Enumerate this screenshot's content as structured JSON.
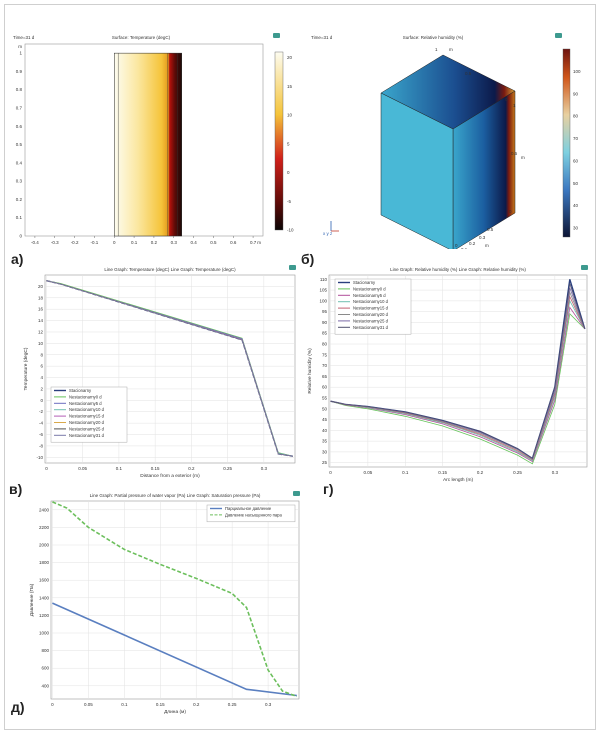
{
  "panel_labels": {
    "a": "а)",
    "b": "б)",
    "v": "в)",
    "g": "г)",
    "d": "д)"
  },
  "chart_data": [
    {
      "id": "a",
      "type": "heatmap",
      "time_label": "Time=31 d",
      "title": "Surface: Temperature (degC)",
      "x_ticks": [
        "-0.4",
        "-0.3",
        "-0.2",
        "-0.1",
        "0",
        "0.1",
        "0.2",
        "0.3",
        "0.4",
        "0.5",
        "0.6",
        "0.7"
      ],
      "x_unit": "m",
      "y_ticks": [
        "0",
        "0.1",
        "0.2",
        "0.3",
        "0.4",
        "0.5",
        "0.6",
        "0.7",
        "0.8",
        "0.9",
        "1"
      ],
      "y_unit": "m",
      "xlim": [
        -0.45,
        0.75
      ],
      "ylim": [
        0,
        1.05
      ],
      "region_x": [
        0,
        0.34
      ],
      "region_y": [
        0,
        1
      ],
      "colorbar": {
        "ticks": [
          "20",
          "15",
          "10",
          "5",
          "0",
          "-5",
          "-10"
        ],
        "min": -10,
        "max": 21
      },
      "icon": "comsol-logo-icon"
    },
    {
      "id": "b",
      "type": "heatmap",
      "time_label": "Time=31 d",
      "title": "Surface: Relative humidity (%)",
      "axis_labels": {
        "top_m": "m",
        "top_05": "0.5",
        "top_1": "1",
        "right_0": "0",
        "right_1": "1",
        "right_05": "0.5",
        "right_0b": "0",
        "right_m": "m",
        "bot_05": "0.5",
        "bot_03": "0.3",
        "bot_02": "0.2",
        "bot_01": "0.1",
        "bot_0": "0",
        "bot_m": "m",
        "axes": "x y z"
      },
      "colorbar": {
        "ticks": [
          "100",
          "90",
          "80",
          "70",
          "60",
          "50",
          "40",
          "30"
        ],
        "min": 26,
        "max": 110
      },
      "icon": "comsol-logo-icon"
    },
    {
      "id": "v",
      "type": "line",
      "title": "Line Graph: Temperature (degC)  Line Graph: Temperature (degC)",
      "xlabel": "Distance from a exterior (m)",
      "ylabel": "Temperature (degC)",
      "xlim": [
        -0.002,
        0.343
      ],
      "ylim": [
        -11,
        22
      ],
      "x_ticks": [
        0,
        0.05,
        0.1,
        0.15,
        0.2,
        0.25,
        0.3
      ],
      "y_ticks": [
        -10,
        -8,
        -6,
        -4,
        -2,
        0,
        2,
        4,
        6,
        8,
        10,
        12,
        14,
        16,
        18,
        20
      ],
      "legend": [
        "Stacionarny",
        "Nestacionarny0 d",
        "Nestacionarny5 d",
        "Nestacionarny10 d",
        "Nestacionarny15 d",
        "Nestacionarny20 d",
        "Nestacionarny25 d",
        "Nestacionarny31 d"
      ],
      "series": [
        {
          "name": "Stacionarny",
          "x": [
            0,
            0.02,
            0.27,
            0.32,
            0.34
          ],
          "y": [
            21,
            20.4,
            10.6,
            -9.4,
            -9.8
          ]
        },
        {
          "name": "Nestacionarny0 d",
          "x": [
            0,
            0.02,
            0.27,
            0.32,
            0.34
          ],
          "y": [
            21,
            20.5,
            10.9,
            -9.2,
            -9.8
          ]
        },
        {
          "name": "Nestacionarny5 d",
          "x": [
            0,
            0.02,
            0.27,
            0.32,
            0.34
          ],
          "y": [
            21,
            20.4,
            10.8,
            -9.3,
            -9.8
          ]
        },
        {
          "name": "Nestacionarny10 d",
          "x": [
            0,
            0.02,
            0.27,
            0.32,
            0.34
          ],
          "y": [
            21,
            20.4,
            10.7,
            -9.3,
            -9.8
          ]
        },
        {
          "name": "Nestacionarny15 d",
          "x": [
            0,
            0.02,
            0.27,
            0.32,
            0.34
          ],
          "y": [
            21,
            20.4,
            10.7,
            -9.4,
            -9.8
          ]
        },
        {
          "name": "Nestacionarny20 d",
          "x": [
            0,
            0.02,
            0.27,
            0.32,
            0.34
          ],
          "y": [
            21,
            20.4,
            10.6,
            -9.4,
            -9.8
          ]
        },
        {
          "name": "Nestacionarny25 d",
          "x": [
            0,
            0.02,
            0.27,
            0.32,
            0.34
          ],
          "y": [
            21,
            20.4,
            10.6,
            -9.4,
            -9.8
          ]
        },
        {
          "name": "Nestacionarny31 d",
          "x": [
            0,
            0.02,
            0.27,
            0.32,
            0.34
          ],
          "y": [
            21,
            20.4,
            10.6,
            -9.4,
            -9.8
          ]
        }
      ],
      "icon": "comsol-logo-icon"
    },
    {
      "id": "g",
      "type": "line",
      "title": "Line Graph: Relative humidity (%)  Line Graph: Relative humidity (%)",
      "xlabel": "Arc length (m)",
      "ylabel": "Relative humidity (%)",
      "xlim": [
        -0.002,
        0.343
      ],
      "ylim": [
        23,
        112
      ],
      "x_ticks": [
        0,
        0.05,
        0.1,
        0.15,
        0.2,
        0.25,
        0.3
      ],
      "y_ticks": [
        25,
        30,
        35,
        40,
        45,
        50,
        55,
        60,
        65,
        70,
        75,
        80,
        85,
        90,
        95,
        100,
        105,
        110
      ],
      "legend": [
        "Stacionarny",
        "Nestacionarny0 d",
        "Nestacionarny5 d",
        "Nestacionarny10 d",
        "Nestacionarny15 d",
        "Nestacionarny20 d",
        "Nestacionarny25 d",
        "Nestacionarny31 d"
      ],
      "series": [
        {
          "name": "Stacionarny",
          "x": [
            0,
            0.02,
            0.05,
            0.1,
            0.15,
            0.2,
            0.25,
            0.27,
            0.3,
            0.32,
            0.34
          ],
          "y": [
            53.5,
            52,
            51,
            48.5,
            44.5,
            39.5,
            31.5,
            27,
            60,
            110,
            87
          ]
        },
        {
          "name": "Nestacionarny0 d",
          "x": [
            0,
            0.02,
            0.05,
            0.1,
            0.15,
            0.2,
            0.25,
            0.27,
            0.3,
            0.32,
            0.34
          ],
          "y": [
            53.5,
            51.5,
            50,
            46.5,
            42,
            36,
            28.5,
            24.5,
            52,
            94,
            87
          ]
        },
        {
          "name": "Nestacionarny5 d",
          "x": [
            0,
            0.02,
            0.05,
            0.1,
            0.15,
            0.2,
            0.25,
            0.27,
            0.3,
            0.32,
            0.34
          ],
          "y": [
            53.5,
            51.8,
            50.4,
            47.3,
            43,
            37,
            29.5,
            25.5,
            54,
            97,
            87
          ]
        },
        {
          "name": "Nestacionarny10 d",
          "x": [
            0,
            0.02,
            0.05,
            0.1,
            0.15,
            0.2,
            0.25,
            0.27,
            0.3,
            0.32,
            0.34
          ],
          "y": [
            53.5,
            52,
            50.6,
            47.7,
            43.5,
            37.7,
            30,
            26,
            55.5,
            100,
            87
          ]
        },
        {
          "name": "Nestacionarny15 d",
          "x": [
            0,
            0.02,
            0.05,
            0.1,
            0.15,
            0.2,
            0.25,
            0.27,
            0.3,
            0.32,
            0.34
          ],
          "y": [
            53.5,
            52,
            50.8,
            48,
            43.8,
            38.2,
            30.5,
            26.4,
            56.5,
            102,
            87
          ]
        },
        {
          "name": "Nestacionarny20 d",
          "x": [
            0,
            0.02,
            0.05,
            0.1,
            0.15,
            0.2,
            0.25,
            0.27,
            0.3,
            0.32,
            0.34
          ],
          "y": [
            53.5,
            52,
            50.9,
            48.2,
            44,
            38.7,
            31,
            26.7,
            57.5,
            104,
            87
          ]
        },
        {
          "name": "Nestacionarny25 d",
          "x": [
            0,
            0.02,
            0.05,
            0.1,
            0.15,
            0.2,
            0.25,
            0.27,
            0.3,
            0.32,
            0.34
          ],
          "y": [
            53.5,
            52,
            51,
            48.4,
            44.3,
            39.1,
            31.3,
            26.9,
            58.5,
            106,
            87
          ]
        },
        {
          "name": "Nestacionarny31 d",
          "x": [
            0,
            0.02,
            0.05,
            0.1,
            0.15,
            0.2,
            0.25,
            0.27,
            0.3,
            0.32,
            0.34
          ],
          "y": [
            53.5,
            52,
            51,
            48.5,
            44.5,
            39.5,
            31.5,
            27,
            60,
            108,
            87
          ]
        }
      ],
      "icon": "comsol-logo-icon"
    },
    {
      "id": "d",
      "type": "line",
      "title": "Line Graph: Partial pressure of water vapor (Pa)  Line Graph: Saturation pressure (Pa)",
      "xlabel": "Длина (м)",
      "ylabel": "Давление (Па)",
      "xlim": [
        -0.002,
        0.343
      ],
      "ylim": [
        250,
        2500
      ],
      "x_ticks": [
        0,
        0.05,
        0.1,
        0.15,
        0.2,
        0.25,
        0.3
      ],
      "y_ticks": [
        400,
        600,
        800,
        1000,
        1200,
        1400,
        1600,
        1800,
        2000,
        2200,
        2400
      ],
      "legend": [
        "Парциальное давление",
        "Давление насыщенного пара"
      ],
      "series": [
        {
          "name": "Парциальное давление",
          "x": [
            0,
            0.27,
            0.34
          ],
          "y": [
            1340,
            360,
            290
          ],
          "style": "solid"
        },
        {
          "name": "Давление насыщенного пара",
          "x": [
            0,
            0.02,
            0.05,
            0.1,
            0.15,
            0.2,
            0.25,
            0.27,
            0.3,
            0.32,
            0.34
          ],
          "y": [
            2490,
            2420,
            2200,
            1950,
            1780,
            1620,
            1450,
            1290,
            580,
            340,
            280
          ],
          "style": "dashed"
        }
      ],
      "icon": "comsol-logo-icon"
    }
  ],
  "colors": {
    "temp_series": [
      "#2b3f7e",
      "#65c35a",
      "#6a6cbf",
      "#6fbfb0",
      "#b35eb6",
      "#d9a94b",
      "#505050",
      "#7a79a8"
    ],
    "rh_series": [
      "#2b3f7e",
      "#65c35a",
      "#b04d9a",
      "#6fbfb0",
      "#c06070",
      "#8a8a8a",
      "#7a6aa8",
      "#505070"
    ],
    "pressure_series": [
      "#5a7fc0",
      "#6cbf5c"
    ]
  }
}
